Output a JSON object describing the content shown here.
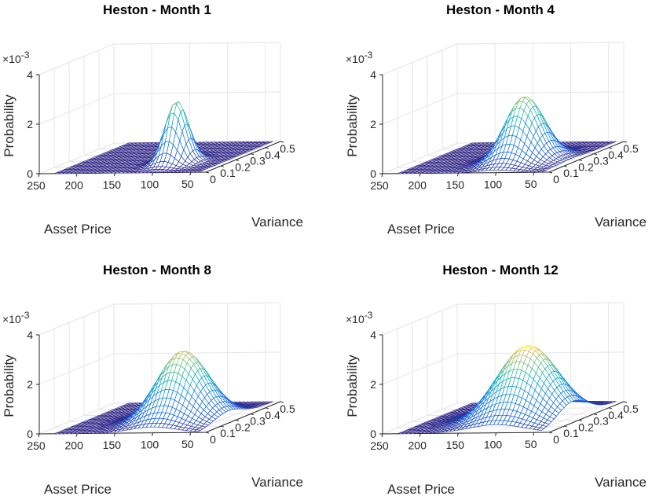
{
  "chart_data": [
    {
      "type": "surface",
      "title": "Heston - Month 1",
      "xlabel": "Asset Price",
      "ylabel": "Variance",
      "zlabel": "Probability",
      "z_exponent": "×10^-3",
      "exp_base": "×10",
      "exp_power": "-3",
      "xlim": [
        30,
        250
      ],
      "ylim": [
        0,
        0.5
      ],
      "zlim": [
        0,
        0.004
      ],
      "xticks": [
        50,
        100,
        150,
        200,
        250
      ],
      "yticks": [
        0,
        0.1,
        0.2,
        0.3,
        0.4,
        0.5
      ],
      "zticks": [
        0,
        2,
        4
      ],
      "surface": {
        "x_range": [
          40,
          230
        ],
        "y_range": [
          0,
          0.5
        ],
        "peak": 0.0025,
        "mu_x": 100,
        "sigma_x": 13,
        "mu_y": 0.16,
        "sigma_y": 0.045,
        "colormap": "parula"
      }
    },
    {
      "type": "surface",
      "title": "Heston - Month 4",
      "xlabel": "Asset Price",
      "ylabel": "Variance",
      "zlabel": "Probability",
      "z_exponent": "×10^-3",
      "exp_base": "×10",
      "exp_power": "-3",
      "xlim": [
        30,
        250
      ],
      "ylim": [
        0,
        0.5
      ],
      "zlim": [
        0,
        0.004
      ],
      "xticks": [
        50,
        100,
        150,
        200,
        250
      ],
      "yticks": [
        0,
        0.1,
        0.2,
        0.3,
        0.4,
        0.5
      ],
      "zticks": [
        0,
        2,
        4
      ],
      "surface": {
        "x_range": [
          40,
          230
        ],
        "y_range": [
          0,
          0.5
        ],
        "peak": 0.0026,
        "mu_x": 100,
        "sigma_x": 22,
        "mu_y": 0.19,
        "sigma_y": 0.075,
        "colormap": "parula"
      }
    },
    {
      "type": "surface",
      "title": "Heston - Month 8",
      "xlabel": "Asset Price",
      "ylabel": "Variance",
      "zlabel": "Probability",
      "z_exponent": "×10^-3",
      "exp_base": "×10",
      "exp_power": "-3",
      "xlim": [
        30,
        250
      ],
      "ylim": [
        0,
        0.5
      ],
      "zlim": [
        0,
        0.004
      ],
      "xticks": [
        50,
        100,
        150,
        200,
        250
      ],
      "yticks": [
        0,
        0.1,
        0.2,
        0.3,
        0.4,
        0.5
      ],
      "zticks": [
        0,
        2,
        4
      ],
      "surface": {
        "x_range": [
          40,
          230
        ],
        "y_range": [
          0,
          0.5
        ],
        "peak": 0.0028,
        "mu_x": 100,
        "sigma_x": 30,
        "mu_y": 0.2,
        "sigma_y": 0.09,
        "colormap": "parula"
      }
    },
    {
      "type": "surface",
      "title": "Heston - Month 12",
      "xlabel": "Asset Price",
      "ylabel": "Variance",
      "zlabel": "Probability",
      "z_exponent": "×10^-3",
      "exp_base": "×10",
      "exp_power": "-3",
      "xlim": [
        30,
        250
      ],
      "ylim": [
        0,
        0.5
      ],
      "zlim": [
        0,
        0.004
      ],
      "xticks": [
        50,
        100,
        150,
        200,
        250
      ],
      "yticks": [
        0,
        0.1,
        0.2,
        0.3,
        0.4,
        0.5
      ],
      "zticks": [
        0,
        2,
        4
      ],
      "surface": {
        "x_range": [
          40,
          230
        ],
        "y_range": [
          0,
          0.5
        ],
        "peak": 0.003,
        "mu_x": 100,
        "sigma_x": 36,
        "mu_y": 0.21,
        "sigma_y": 0.1,
        "colormap": "parula"
      }
    }
  ]
}
